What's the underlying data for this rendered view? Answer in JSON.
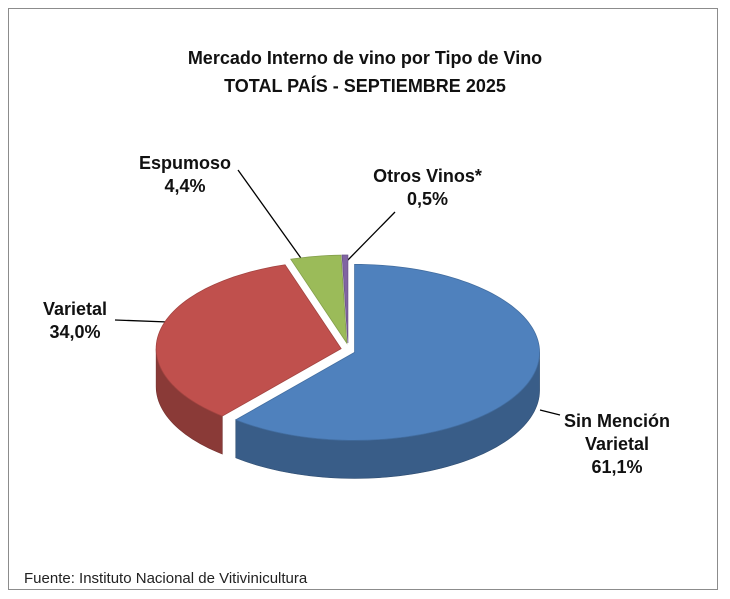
{
  "chart_data": {
    "type": "pie",
    "title": "Mercado Interno de vino por Tipo de Vino",
    "subtitle": "TOTAL PAÍS - SEPTIEMBRE 2025",
    "categories": [
      "Sin Mención Varietal",
      "Varietal",
      "Espumoso",
      "Otros Vinos*"
    ],
    "values": [
      61.1,
      34.0,
      4.4,
      0.5
    ],
    "value_labels": [
      "61,1%",
      "34,0%",
      "4,4%",
      "0,5%"
    ],
    "colors": [
      "#4f81bd",
      "#c0504d",
      "#9bbb59",
      "#8064a2"
    ],
    "source": "Fuente: Instituto Nacional de Vitivinicultura"
  }
}
